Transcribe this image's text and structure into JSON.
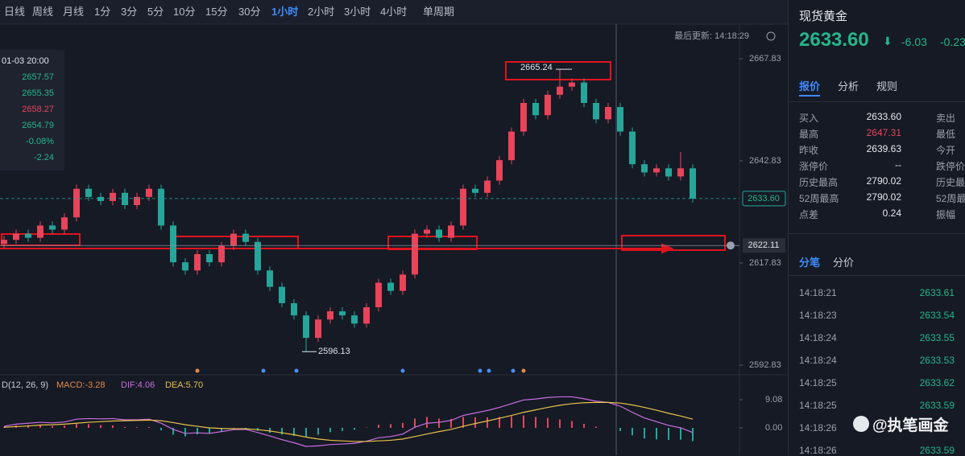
{
  "toolbar": {
    "timeframes": [
      "日线",
      "周线",
      "月线",
      "1分",
      "3分",
      "5分",
      "10分",
      "15分",
      "30分",
      "1小时",
      "2小时",
      "3小时",
      "4小时"
    ],
    "active": 9,
    "period_mode": "单周期"
  },
  "last_update": "最后更新: 14:18:29",
  "info_box": {
    "date": "01-03 20:00",
    "values": [
      "2657.57",
      "2655.35",
      "2658.27",
      "2654.79",
      "-0.08%",
      "-2.24"
    ]
  },
  "price_chart": {
    "yticks": [
      2667.83,
      2642.83,
      2617.83,
      2592.83
    ],
    "current_price": "2633.60",
    "line_price": "2622.11",
    "high_note": "2665.24",
    "low_note": "2596.13",
    "candles": [
      [
        2622.5,
        2624.5,
        2621.5,
        2623.5
      ],
      [
        2623.5,
        2626,
        2622.5,
        2625
      ],
      [
        2625,
        2626,
        2623,
        2624
      ],
      [
        2624,
        2628,
        2623,
        2627
      ],
      [
        2627,
        2628,
        2625,
        2626
      ],
      [
        2626,
        2630,
        2625,
        2629
      ],
      [
        2629,
        2637,
        2628,
        2636
      ],
      [
        2636,
        2637,
        2633,
        2634
      ],
      [
        2634,
        2635,
        2632,
        2633
      ],
      [
        2633,
        2636,
        2632,
        2635
      ],
      [
        2635,
        2636,
        2631,
        2632
      ],
      [
        2632,
        2635,
        2631,
        2634
      ],
      [
        2634,
        2637,
        2633,
        2636
      ],
      [
        2636,
        2637,
        2626,
        2627
      ],
      [
        2627,
        2628,
        2617,
        2618
      ],
      [
        2618,
        2619,
        2615,
        2616
      ],
      [
        2616,
        2621,
        2615,
        2620
      ],
      [
        2620,
        2621,
        2617,
        2618
      ],
      [
        2618,
        2623,
        2617,
        2622
      ],
      [
        2622,
        2626,
        2621,
        2625
      ],
      [
        2625,
        2626,
        2622,
        2623
      ],
      [
        2623,
        2624,
        2615,
        2616
      ],
      [
        2616,
        2617,
        2611,
        2612
      ],
      [
        2612,
        2613,
        2607,
        2608
      ],
      [
        2608,
        2609,
        2604,
        2605
      ],
      [
        2605,
        2606,
        2596.13,
        2599.5
      ],
      [
        2599.5,
        2605,
        2598.5,
        2604
      ],
      [
        2604,
        2607,
        2603,
        2606
      ],
      [
        2606,
        2607,
        2604,
        2605
      ],
      [
        2605,
        2606,
        2602,
        2603
      ],
      [
        2603,
        2608,
        2602,
        2607
      ],
      [
        2607,
        2614,
        2606,
        2613
      ],
      [
        2613,
        2614,
        2610,
        2611
      ],
      [
        2611,
        2616,
        2610,
        2615
      ],
      [
        2615,
        2626,
        2614,
        2625
      ],
      [
        2625,
        2627,
        2624,
        2626
      ],
      [
        2626,
        2627,
        2623,
        2624
      ],
      [
        2624,
        2628,
        2623,
        2627
      ],
      [
        2627,
        2637,
        2626,
        2636
      ],
      [
        2636,
        2637,
        2634,
        2635
      ],
      [
        2635,
        2639,
        2634,
        2638
      ],
      [
        2638,
        2644,
        2637,
        2643
      ],
      [
        2643,
        2651,
        2642,
        2650
      ],
      [
        2650,
        2658,
        2649,
        2657
      ],
      [
        2657,
        2658,
        2653,
        2654
      ],
      [
        2654,
        2660,
        2653,
        2659
      ],
      [
        2659,
        2665.24,
        2658,
        2661
      ],
      [
        2661,
        2663,
        2660,
        2662
      ],
      [
        2662,
        2663,
        2656,
        2657
      ],
      [
        2657,
        2658,
        2652,
        2653
      ],
      [
        2653,
        2657,
        2652,
        2656
      ],
      [
        2656,
        2657,
        2649,
        2650
      ],
      [
        2650,
        2651,
        2641,
        2642
      ],
      [
        2642,
        2643,
        2639,
        2640
      ],
      [
        2640,
        2642,
        2639,
        2641
      ],
      [
        2641,
        2642,
        2638,
        2639
      ],
      [
        2639,
        2645,
        2638,
        2641
      ],
      [
        2641,
        2642,
        2632.6,
        2633.6
      ]
    ]
  },
  "macd": {
    "label": "D(12, 26, 9)",
    "macd": "MACD:-3.28",
    "dif": "DIF:4.06",
    "dea": "DEA:5.70",
    "yticks": [
      9.08,
      {
        "value": 0,
        "label": "0.00"
      }
    ],
    "dif_values": [
      0.5,
      1.2,
      1.5,
      1.8,
      1.6,
      1.9,
      2.8,
      3.0,
      2.9,
      3.0,
      2.6,
      2.6,
      2.8,
      1.5,
      -0.5,
      -1.8,
      -1.6,
      -1.8,
      -1.2,
      -0.6,
      -0.5,
      -1.5,
      -2.6,
      -3.8,
      -4.8,
      -6.0,
      -5.8,
      -5.4,
      -5.2,
      -5.0,
      -4.3,
      -3.2,
      -2.8,
      -2.0,
      0.2,
      1.5,
      1.8,
      2.4,
      4.0,
      4.8,
      5.6,
      6.6,
      7.8,
      9.0,
      9.3,
      9.8,
      10.0,
      10.0,
      9.4,
      8.6,
      8.2,
      7.0,
      5.0,
      3.2,
      2.0,
      0.8,
      0.0,
      -1.5
    ],
    "dea_values": [
      0.2,
      0.4,
      0.6,
      0.9,
      1.0,
      1.2,
      1.5,
      1.8,
      2.0,
      2.2,
      2.3,
      2.4,
      2.5,
      2.3,
      1.7,
      1.0,
      0.5,
      0.0,
      -0.2,
      -0.3,
      -0.3,
      -0.6,
      -1.0,
      -1.6,
      -2.2,
      -3.0,
      -3.6,
      -4.0,
      -4.2,
      -4.4,
      -4.4,
      -4.2,
      -4.0,
      -3.6,
      -2.8,
      -2.0,
      -1.2,
      -0.5,
      0.5,
      1.4,
      2.2,
      3.1,
      4.0,
      5.0,
      5.8,
      6.6,
      7.3,
      7.8,
      8.1,
      8.2,
      8.2,
      8.0,
      7.4,
      6.6,
      5.7,
      4.7,
      3.8,
      2.8
    ],
    "hist_values": [
      0.3,
      0.8,
      0.9,
      0.9,
      0.6,
      0.7,
      1.3,
      1.2,
      0.9,
      0.8,
      0.3,
      0.2,
      0.3,
      -0.8,
      -2.2,
      -2.8,
      -2.1,
      -1.8,
      -1.0,
      -0.3,
      -0.2,
      -0.9,
      -1.6,
      -2.2,
      -2.6,
      -3.0,
      -2.2,
      -1.4,
      -1.0,
      -0.6,
      0.1,
      1.0,
      1.2,
      1.6,
      3.0,
      3.5,
      3.0,
      2.9,
      3.5,
      3.4,
      3.4,
      3.5,
      3.8,
      4.0,
      3.5,
      3.2,
      2.7,
      2.2,
      1.3,
      0.4,
      0.0,
      -1.0,
      -2.4,
      -3.4,
      -3.7,
      -3.9,
      -3.8,
      -4.3
    ]
  },
  "panel": {
    "title": "现货黄金",
    "price": "2633.60",
    "change": "-6.03",
    "change_pct": "-0.23",
    "tabs": [
      "报价",
      "分析",
      "规则"
    ],
    "quotes": [
      [
        "买入",
        "2633.60",
        "卖出"
      ],
      [
        "最高",
        "2647.31",
        "最低"
      ],
      [
        "昨收",
        "2639.63",
        "今开"
      ],
      [
        "涨停价",
        "--",
        "跌停价"
      ],
      [
        "历史最高",
        "2790.02",
        "历史最"
      ],
      [
        "52周最高",
        "2790.02",
        "52周最"
      ],
      [
        "点差",
        "0.24",
        "振幅"
      ]
    ],
    "tick_tabs": [
      "分笔",
      "分价"
    ],
    "ticks": [
      [
        "14:18:21",
        "2633.61"
      ],
      [
        "14:18:23",
        "2633.54"
      ],
      [
        "14:18:24",
        "2633.55"
      ],
      [
        "14:18:24",
        "2633.53"
      ],
      [
        "14:18:25",
        "2633.62"
      ],
      [
        "14:18:25",
        "2633.59"
      ],
      [
        "14:18:26"
      ],
      [
        "14:18:26",
        "2633.59"
      ]
    ],
    "watermark": "@执笔画金"
  }
}
